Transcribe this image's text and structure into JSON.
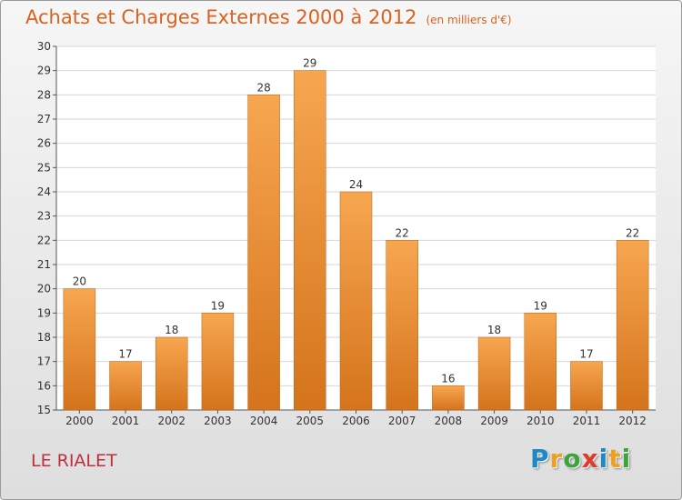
{
  "title": "Achats et Charges Externes 2000 à 2012",
  "subtitle": "(en milliers d'€)",
  "commune": "LE RIALET",
  "logo": {
    "letters": [
      "P",
      "r",
      "o",
      "x",
      "i",
      "t",
      "i"
    ],
    "colors": [
      "#1e88c9",
      "#f0a020",
      "#3aa63a",
      "#e03a2a",
      "#1e88c9",
      "#f0a020",
      "#3aa63a"
    ]
  },
  "colors": {
    "bar_light": "#f7a650",
    "bar_dark": "#d4741c",
    "title": "#d8621f",
    "commune": "#c0303c"
  },
  "chart_data": {
    "type": "bar",
    "categories": [
      "2000",
      "2001",
      "2002",
      "2003",
      "2004",
      "2005",
      "2006",
      "2007",
      "2008",
      "2009",
      "2010",
      "2011",
      "2012"
    ],
    "values": [
      20,
      17,
      18,
      19,
      28,
      29,
      24,
      22,
      16,
      18,
      19,
      17,
      22
    ],
    "title": "Achats et Charges Externes 2000 à 2012",
    "ylim": [
      15,
      30
    ],
    "yticks": [
      15,
      16,
      17,
      18,
      19,
      20,
      21,
      22,
      23,
      24,
      25,
      26,
      27,
      28,
      29,
      30
    ],
    "grid": true,
    "data_labels": true
  }
}
